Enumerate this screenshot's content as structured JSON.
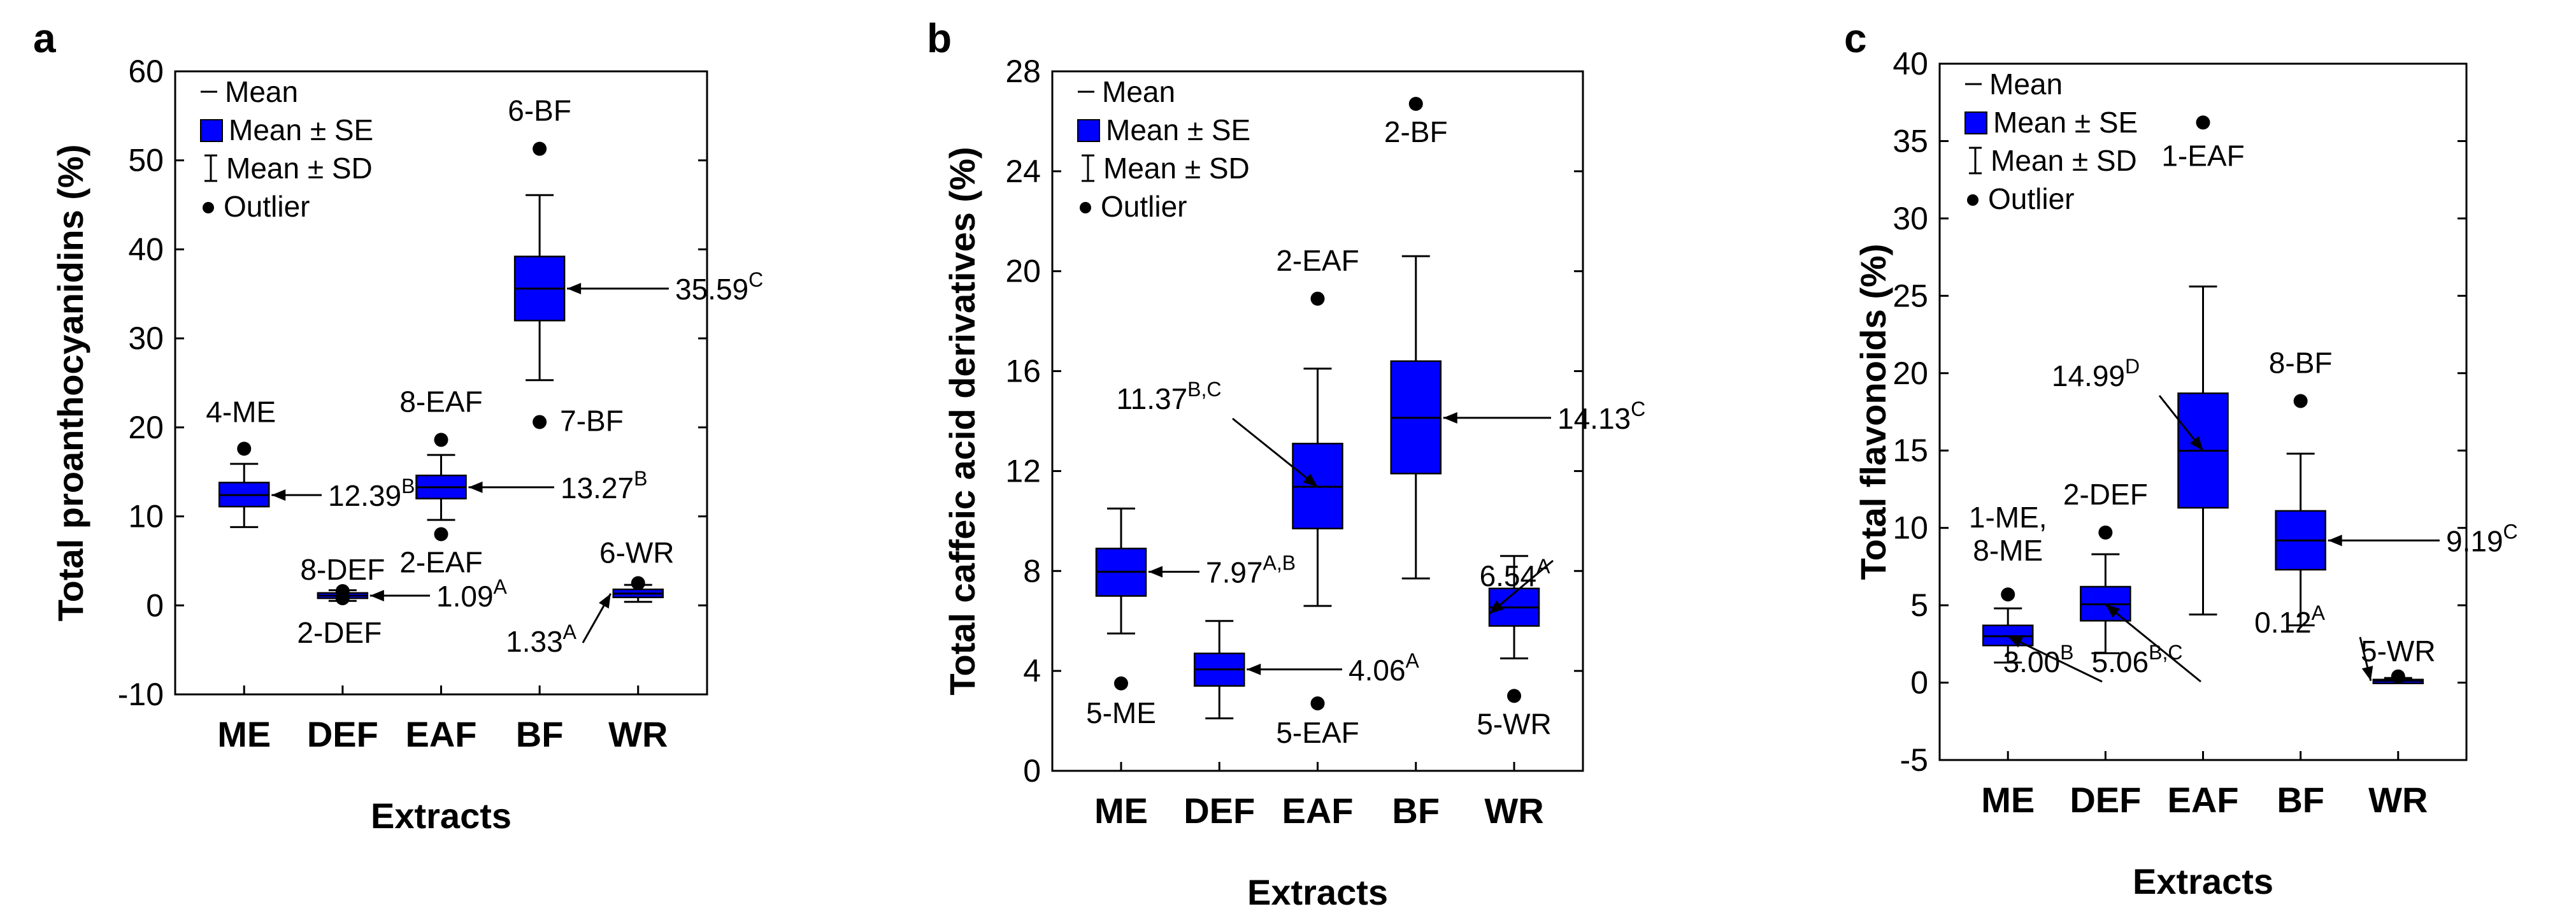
{
  "chart_data": [
    {
      "type": "box",
      "panel_label": "a",
      "title": "",
      "xlabel": "Extracts",
      "ylabel": "Total proanthocyanidins (%)",
      "ylim": [
        -10,
        60
      ],
      "yticks": [
        -10,
        0,
        10,
        20,
        30,
        40,
        50,
        60
      ],
      "categories": [
        "ME",
        "DEF",
        "EAF",
        "BF",
        "WR"
      ],
      "legend": {
        "position": "top-left",
        "items": [
          "Mean",
          "Mean ± SE",
          "Mean ± SD",
          "Outlier"
        ]
      },
      "boxes": [
        {
          "mean": 12.39,
          "se_low": 11.1,
          "se_high": 13.8,
          "sd_low": 8.8,
          "sd_high": 15.9,
          "sup": "B",
          "label": "12.39"
        },
        {
          "mean": 1.09,
          "se_low": 0.8,
          "se_high": 1.4,
          "sd_low": 0.5,
          "sd_high": 1.7,
          "sup": "A",
          "label": "1.09"
        },
        {
          "mean": 13.27,
          "se_low": 12.0,
          "se_high": 14.6,
          "sd_low": 9.6,
          "sd_high": 16.9,
          "sup": "B",
          "label": "13.27"
        },
        {
          "mean": 35.59,
          "se_low": 32.0,
          "se_high": 39.2,
          "sd_low": 25.3,
          "sd_high": 46.1,
          "sup": "C",
          "label": "35.59"
        },
        {
          "mean": 1.33,
          "se_low": 0.9,
          "se_high": 1.8,
          "sd_low": 0.4,
          "sd_high": 2.3,
          "sup": "A",
          "label": "1.33"
        }
      ],
      "outliers": [
        {
          "cat": 0,
          "y": 17.6,
          "label": "4-ME"
        },
        {
          "cat": 1,
          "y": 1.6,
          "label": "8-DEF"
        },
        {
          "cat": 1,
          "y": 0.8,
          "label": "2-DEF"
        },
        {
          "cat": 2,
          "y": 18.6,
          "label": "8-EAF"
        },
        {
          "cat": 2,
          "y": 8.0,
          "label": "2-EAF"
        },
        {
          "cat": 3,
          "y": 51.3,
          "label": "6-BF"
        },
        {
          "cat": 3,
          "y": 20.6,
          "label": "7-BF"
        },
        {
          "cat": 4,
          "y": 2.5,
          "label": "6-WR"
        }
      ]
    },
    {
      "type": "box",
      "panel_label": "b",
      "title": "",
      "xlabel": "Extracts",
      "ylabel": "Total caffeic acid derivatives (%)",
      "ylim": [
        0,
        28
      ],
      "yticks": [
        0,
        4,
        8,
        12,
        16,
        20,
        24,
        28
      ],
      "categories": [
        "ME",
        "DEF",
        "EAF",
        "BF",
        "WR"
      ],
      "legend": {
        "position": "top-left",
        "items": [
          "Mean",
          "Mean ± SE",
          "Mean ± SD",
          "Outlier"
        ]
      },
      "boxes": [
        {
          "mean": 7.97,
          "se_low": 7.0,
          "se_high": 8.9,
          "sd_low": 5.5,
          "sd_high": 10.5,
          "sup": "A,B",
          "label": "7.97"
        },
        {
          "mean": 4.06,
          "se_low": 3.4,
          "se_high": 4.7,
          "sd_low": 2.1,
          "sd_high": 6.0,
          "sup": "A",
          "label": "4.06"
        },
        {
          "mean": 11.37,
          "se_low": 9.7,
          "se_high": 13.1,
          "sd_low": 6.6,
          "sd_high": 16.1,
          "sup": "B,C",
          "label": "11.37"
        },
        {
          "mean": 14.13,
          "se_low": 11.9,
          "se_high": 16.4,
          "sd_low": 7.7,
          "sd_high": 20.6,
          "sup": "C",
          "label": "14.13"
        },
        {
          "mean": 6.54,
          "se_low": 5.8,
          "se_high": 7.3,
          "sd_low": 4.5,
          "sd_high": 8.6,
          "sup": "A",
          "label": "6.54"
        }
      ],
      "outliers": [
        {
          "cat": 0,
          "y": 3.5,
          "label": "5-ME"
        },
        {
          "cat": 2,
          "y": 18.9,
          "label": "2-EAF"
        },
        {
          "cat": 2,
          "y": 2.7,
          "label": "5-EAF"
        },
        {
          "cat": 3,
          "y": 26.7,
          "label": "2-BF"
        },
        {
          "cat": 4,
          "y": 3.0,
          "label": "5-WR"
        }
      ]
    },
    {
      "type": "box",
      "panel_label": "c",
      "title": "",
      "xlabel": "Extracts",
      "ylabel": "Total flavonoids (%)",
      "ylim": [
        -5,
        40
      ],
      "yticks": [
        -5,
        0,
        5,
        10,
        15,
        20,
        25,
        30,
        35,
        40
      ],
      "categories": [
        "ME",
        "DEF",
        "EAF",
        "BF",
        "WR"
      ],
      "legend": {
        "position": "top-left",
        "items": [
          "Mean",
          "Mean ± SE",
          "Mean ± SD",
          "Outlier"
        ]
      },
      "boxes": [
        {
          "mean": 3.0,
          "se_low": 2.4,
          "se_high": 3.7,
          "sd_low": 1.3,
          "sd_high": 4.8,
          "sup": "B",
          "label": "3.00"
        },
        {
          "mean": 5.06,
          "se_low": 4.0,
          "se_high": 6.2,
          "sd_low": 1.9,
          "sd_high": 8.3,
          "sup": "B,C",
          "label": "5.06"
        },
        {
          "mean": 14.99,
          "se_low": 11.3,
          "se_high": 18.7,
          "sd_low": 4.4,
          "sd_high": 25.6,
          "sup": "D",
          "label": "14.99"
        },
        {
          "mean": 9.19,
          "se_low": 7.3,
          "se_high": 11.1,
          "sd_low": 3.7,
          "sd_high": 14.8,
          "sup": "C",
          "label": "9.19"
        },
        {
          "mean": 0.12,
          "se_low": 0.05,
          "se_high": 0.2,
          "sd_low": 0.0,
          "sd_high": 0.3,
          "sup": "A",
          "label": "0.12"
        }
      ],
      "outliers": [
        {
          "cat": 0,
          "y": 5.7,
          "label": "1-ME,|8-ME"
        },
        {
          "cat": 1,
          "y": 9.7,
          "label": "2-DEF"
        },
        {
          "cat": 2,
          "y": 36.2,
          "label": "1-EAF"
        },
        {
          "cat": 3,
          "y": 18.2,
          "label": "8-BF"
        },
        {
          "cat": 4,
          "y": 0.4,
          "label": "5-WR"
        }
      ]
    }
  ],
  "colors": {
    "box_fill": "#0000FF",
    "line": "#000000",
    "background": "#FFFFFF"
  },
  "legend_text": {
    "mean": "Mean",
    "se": "Mean ± SE",
    "sd": "Mean ± SD",
    "outlier": "Outlier"
  }
}
